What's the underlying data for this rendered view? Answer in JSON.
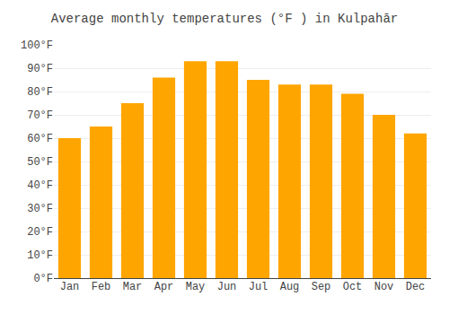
{
  "chart_data": {
    "type": "bar",
    "title": "Average monthly temperatures (°F ) in Kulpahār",
    "categories": [
      "Jan",
      "Feb",
      "Mar",
      "Apr",
      "May",
      "Jun",
      "Jul",
      "Aug",
      "Sep",
      "Oct",
      "Nov",
      "Dec"
    ],
    "values": [
      60,
      65,
      75,
      86,
      93,
      93,
      85,
      83,
      83,
      79,
      70,
      62
    ],
    "color": "#FFA500",
    "ylim": [
      0,
      100
    ],
    "yticks": [
      {
        "value": 0,
        "label": "0°F"
      },
      {
        "value": 10,
        "label": "10°F"
      },
      {
        "value": 20,
        "label": "20°F"
      },
      {
        "value": 30,
        "label": "30°F"
      },
      {
        "value": 40,
        "label": "40°F"
      },
      {
        "value": 50,
        "label": "50°F"
      },
      {
        "value": 60,
        "label": "60°F"
      },
      {
        "value": 70,
        "label": "70°F"
      },
      {
        "value": 80,
        "label": "80°F"
      },
      {
        "value": 90,
        "label": "90°F"
      },
      {
        "value": 100,
        "label": "100°F"
      }
    ],
    "grid": true
  }
}
